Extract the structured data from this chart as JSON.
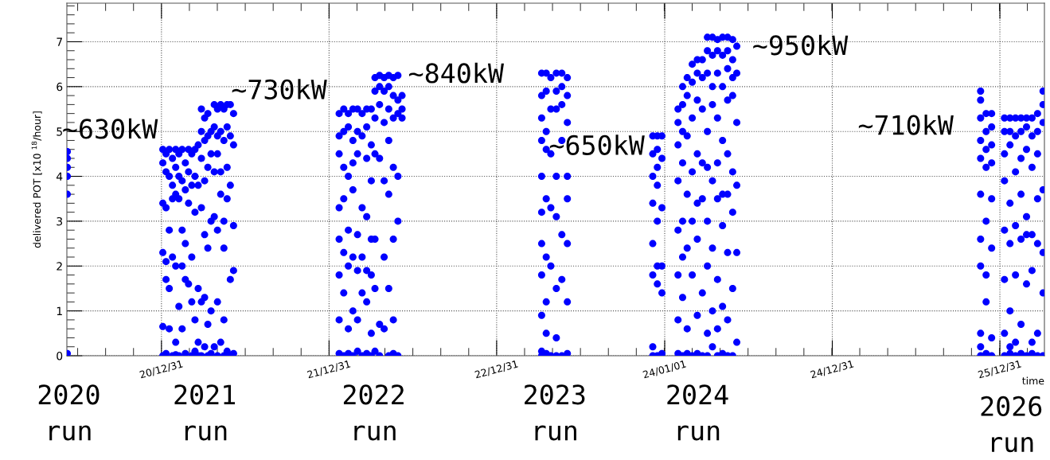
{
  "chart_data": {
    "type": "scatter",
    "ylabel": "delivered POT [x10 $^{18}$/hour]",
    "xlabel": "time",
    "xlim": [
      "2020-06-08",
      "2026-04-07"
    ],
    "ylim": [
      0,
      7.86
    ],
    "xticks": [
      {
        "value": "2020-12-31",
        "label": "20/12/31"
      },
      {
        "value": "2021-12-31",
        "label": "21/12/31"
      },
      {
        "value": "2022-12-31",
        "label": "22/12/31"
      },
      {
        "value": "2024-01-01",
        "label": "24/01/01"
      },
      {
        "value": "2024-12-31",
        "label": "24/12/31"
      },
      {
        "value": "2025-12-31",
        "label": "25/12/31"
      }
    ],
    "yticks": [
      0,
      1,
      2,
      3,
      4,
      5,
      6,
      7
    ],
    "grid": true,
    "marker": "circle",
    "series": [
      {
        "color": "#0000ff",
        "x": [
          "2020-06-09",
          "2020-06-09",
          "2020-06-09",
          "2020-06-09",
          "2020-06-09",
          "2020-06-09"
        ],
        "values": [
          4.55,
          4.4,
          4.2,
          4.0,
          3.6,
          0.05
        ]
      },
      {
        "color": "#0000ff",
        "x": [
          "2021-01-03",
          "2021-01-03",
          "2021-01-03",
          "2021-01-03",
          "2021-01-03",
          "2021-01-03",
          "2021-01-10",
          "2021-01-10",
          "2021-01-10",
          "2021-01-10",
          "2021-01-10",
          "2021-01-10",
          "2021-01-17",
          "2021-01-17",
          "2021-01-17",
          "2021-01-17",
          "2021-01-17",
          "2021-01-24",
          "2021-01-24",
          "2021-01-24",
          "2021-01-24",
          "2021-01-24",
          "2021-01-31",
          "2021-01-31",
          "2021-01-31",
          "2021-01-31",
          "2021-01-31",
          "2021-01-31",
          "2021-02-07",
          "2021-02-07",
          "2021-02-07",
          "2021-02-07",
          "2021-02-07",
          "2021-02-14",
          "2021-02-14",
          "2021-02-14",
          "2021-02-14",
          "2021-02-14",
          "2021-02-21",
          "2021-02-21",
          "2021-02-21",
          "2021-02-21",
          "2021-02-21",
          "2021-02-28",
          "2021-02-28",
          "2021-02-28",
          "2021-02-28",
          "2021-03-07",
          "2021-03-07",
          "2021-03-07",
          "2021-03-07",
          "2021-03-07",
          "2021-03-14",
          "2021-03-14",
          "2021-03-14",
          "2021-03-14",
          "2021-03-14",
          "2021-03-21",
          "2021-03-21",
          "2021-03-21",
          "2021-03-21",
          "2021-03-21",
          "2021-03-28",
          "2021-03-28",
          "2021-03-28",
          "2021-03-28",
          "2021-03-28",
          "2021-03-28",
          "2021-04-04",
          "2021-04-04",
          "2021-04-04",
          "2021-04-04",
          "2021-04-04",
          "2021-04-04",
          "2021-04-11",
          "2021-04-11",
          "2021-04-11",
          "2021-04-11",
          "2021-04-11",
          "2021-04-11",
          "2021-04-18",
          "2021-04-18",
          "2021-04-18",
          "2021-04-18",
          "2021-04-18",
          "2021-04-25",
          "2021-04-25",
          "2021-04-25",
          "2021-04-25",
          "2021-04-25",
          "2021-05-02",
          "2021-05-02",
          "2021-05-02",
          "2021-05-02",
          "2021-05-02",
          "2021-05-02",
          "2021-05-09",
          "2021-05-09",
          "2021-05-09",
          "2021-05-09",
          "2021-05-09",
          "2021-05-16",
          "2021-05-16",
          "2021-05-16",
          "2021-05-16",
          "2021-05-16",
          "2021-05-16",
          "2021-05-23",
          "2021-05-23",
          "2021-05-23",
          "2021-05-23",
          "2021-05-23",
          "2021-05-30",
          "2021-05-30",
          "2021-05-30",
          "2021-05-30",
          "2021-05-30",
          "2021-06-06",
          "2021-06-06",
          "2021-06-06",
          "2021-06-06",
          "2021-06-06"
        ],
        "values": [
          4.6,
          4.3,
          3.4,
          2.3,
          0.65,
          0.0,
          4.5,
          4.1,
          3.3,
          2.1,
          1.7,
          0.05,
          4.6,
          4.0,
          2.8,
          1.5,
          0.6,
          4.4,
          3.8,
          3.5,
          2.2,
          0.0,
          4.6,
          4.2,
          3.6,
          2.0,
          0.3,
          0.02,
          4.5,
          4.0,
          3.5,
          1.1,
          0.0,
          4.6,
          3.9,
          2.8,
          2.0,
          0.6,
          4.3,
          3.7,
          2.5,
          1.7,
          0.05,
          4.6,
          4.1,
          3.4,
          1.6,
          4.5,
          3.8,
          2.2,
          1.2,
          0.0,
          4.6,
          4.0,
          3.2,
          0.8,
          0.1,
          4.7,
          3.8,
          1.5,
          0.3,
          0.0,
          5.5,
          5.0,
          4.4,
          3.3,
          1.2,
          0.0,
          5.3,
          4.8,
          3.9,
          2.7,
          1.3,
          0.2,
          5.4,
          4.9,
          4.2,
          2.4,
          0.7,
          0.0,
          5.0,
          4.5,
          3.0,
          1.0,
          0.05,
          5.6,
          5.1,
          4.1,
          3.1,
          0.2,
          5.5,
          4.9,
          4.5,
          2.8,
          1.2,
          0.0,
          5.6,
          5.0,
          4.1,
          3.6,
          0.3,
          5.5,
          4.8,
          3.0,
          2.4,
          0.8,
          0.0,
          5.6,
          5.1,
          4.2,
          3.5,
          0.1,
          5.6,
          4.9,
          3.8,
          1.7,
          0.0,
          5.4,
          4.7,
          2.9,
          1.9,
          0.05
        ]
      },
      {
        "color": "#0000ff",
        "x": [
          "2022-01-22",
          "2022-01-22",
          "2022-01-22",
          "2022-01-22",
          "2022-01-22",
          "2022-01-22",
          "2022-01-22",
          "2022-01-22",
          "2022-02-01",
          "2022-02-01",
          "2022-02-01",
          "2022-02-01",
          "2022-02-01",
          "2022-02-01",
          "2022-02-01",
          "2022-02-11",
          "2022-02-11",
          "2022-02-11",
          "2022-02-11",
          "2022-02-11",
          "2022-02-11",
          "2022-02-11",
          "2022-02-21",
          "2022-02-21",
          "2022-02-21",
          "2022-02-21",
          "2022-02-21",
          "2022-02-21",
          "2022-02-21",
          "2022-03-03",
          "2022-03-03",
          "2022-03-03",
          "2022-03-03",
          "2022-03-03",
          "2022-03-03",
          "2022-03-03",
          "2022-03-13",
          "2022-03-13",
          "2022-03-13",
          "2022-03-13",
          "2022-03-13",
          "2022-03-13",
          "2022-03-23",
          "2022-03-23",
          "2022-03-23",
          "2022-03-23",
          "2022-03-23",
          "2022-03-23",
          "2022-03-23",
          "2022-04-02",
          "2022-04-02",
          "2022-04-02",
          "2022-04-02",
          "2022-04-02",
          "2022-04-02",
          "2022-04-02",
          "2022-04-10",
          "2022-04-10",
          "2022-04-10",
          "2022-04-10",
          "2022-04-10",
          "2022-04-10",
          "2022-04-10",
          "2022-04-20",
          "2022-04-20",
          "2022-04-20",
          "2022-04-20",
          "2022-04-20",
          "2022-04-20",
          "2022-04-30",
          "2022-04-30",
          "2022-04-30",
          "2022-04-30",
          "2022-04-30",
          "2022-04-30",
          "2022-05-10",
          "2022-05-10",
          "2022-05-10",
          "2022-05-10",
          "2022-05-10",
          "2022-05-10",
          "2022-05-10",
          "2022-05-20",
          "2022-05-20",
          "2022-05-20",
          "2022-05-20",
          "2022-05-20",
          "2022-05-20",
          "2022-05-20",
          "2022-05-30",
          "2022-05-30",
          "2022-05-30",
          "2022-05-30",
          "2022-05-30",
          "2022-05-30",
          "2022-06-08",
          "2022-06-08",
          "2022-06-08"
        ],
        "values": [
          5.4,
          4.9,
          4.5,
          3.3,
          2.6,
          1.8,
          0.8,
          0.05,
          5.5,
          5.0,
          4.2,
          3.5,
          2.3,
          1.4,
          0.0,
          5.4,
          5.1,
          4.0,
          2.8,
          2.0,
          0.6,
          0.05,
          5.5,
          4.8,
          4.3,
          3.7,
          2.2,
          1.0,
          0.0,
          5.5,
          5.0,
          4.5,
          2.7,
          1.9,
          0.8,
          0.1,
          5.4,
          4.9,
          3.3,
          2.2,
          1.4,
          0.0,
          5.5,
          5.1,
          4.4,
          3.1,
          1.9,
          1.2,
          0.05,
          5.5,
          4.7,
          3.9,
          2.6,
          1.8,
          0.5,
          0.0,
          6.2,
          5.9,
          5.3,
          4.5,
          2.6,
          1.5,
          0.1,
          6.25,
          6.0,
          5.6,
          4.4,
          0.7,
          0.0,
          6.2,
          5.9,
          5.2,
          3.9,
          2.2,
          0.6,
          6.25,
          6.0,
          5.5,
          4.8,
          3.6,
          1.5,
          0.0,
          6.2,
          5.8,
          5.3,
          4.2,
          2.6,
          0.8,
          0.05,
          6.25,
          5.7,
          5.4,
          4.0,
          3.0,
          0.0,
          5.8,
          5.5,
          5.3
        ]
      },
      {
        "color": "#0000ff",
        "x": [
          "2023-04-08",
          "2023-04-08",
          "2023-04-08",
          "2023-04-08",
          "2023-04-08",
          "2023-04-08",
          "2023-04-08",
          "2023-04-08",
          "2023-04-08",
          "2023-04-08",
          "2023-04-08",
          "2023-04-18",
          "2023-04-18",
          "2023-04-18",
          "2023-04-18",
          "2023-04-18",
          "2023-04-18",
          "2023-04-18",
          "2023-04-18",
          "2023-04-18",
          "2023-04-28",
          "2023-04-28",
          "2023-04-28",
          "2023-04-28",
          "2023-04-28",
          "2023-04-28",
          "2023-05-10",
          "2023-05-10",
          "2023-05-10",
          "2023-05-10",
          "2023-05-10",
          "2023-05-10",
          "2023-05-10",
          "2023-05-10",
          "2023-05-22",
          "2023-05-22",
          "2023-05-22",
          "2023-05-22",
          "2023-05-22",
          "2023-05-22",
          "2023-05-22",
          "2023-06-03",
          "2023-06-03",
          "2023-06-03",
          "2023-06-03",
          "2023-06-03",
          "2023-06-03",
          "2023-06-03",
          "2023-06-03"
        ],
        "values": [
          6.3,
          5.8,
          5.3,
          4.8,
          4.0,
          3.2,
          2.5,
          1.8,
          0.9,
          0.1,
          0.0,
          6.3,
          5.9,
          5.0,
          4.6,
          3.5,
          2.2,
          1.2,
          0.5,
          0.05,
          6.2,
          5.5,
          4.5,
          3.3,
          2.0,
          0.0,
          6.3,
          5.9,
          5.5,
          4.0,
          3.1,
          1.5,
          0.4,
          0.0,
          6.3,
          6.0,
          5.6,
          4.8,
          2.7,
          1.7,
          0.0,
          6.2,
          5.8,
          5.2,
          4.0,
          3.5,
          2.5,
          1.2,
          0.05
        ]
      },
      {
        "color": "#0000ff",
        "x": [
          "2023-12-06",
          "2023-12-06",
          "2023-12-06",
          "2023-12-06",
          "2023-12-06",
          "2023-12-06",
          "2023-12-06",
          "2023-12-06",
          "2023-12-16",
          "2023-12-16",
          "2023-12-16",
          "2023-12-16",
          "2023-12-16",
          "2023-12-16",
          "2023-12-16",
          "2023-12-16",
          "2023-12-26",
          "2023-12-26",
          "2023-12-26",
          "2023-12-26",
          "2023-12-26",
          "2023-12-26"
        ],
        "values": [
          4.9,
          4.5,
          4.0,
          3.4,
          2.5,
          1.8,
          0.2,
          0.0,
          4.9,
          4.6,
          4.2,
          3.8,
          3.0,
          2.0,
          1.6,
          0.0,
          4.9,
          4.4,
          3.3,
          2.0,
          1.4,
          0.05
        ]
      },
      {
        "color": "#0000ff",
        "x": [
          "2024-01-30",
          "2024-01-30",
          "2024-01-30",
          "2024-01-30",
          "2024-01-30",
          "2024-01-30",
          "2024-01-30",
          "2024-01-30",
          "2024-02-09",
          "2024-02-09",
          "2024-02-09",
          "2024-02-09",
          "2024-02-09",
          "2024-02-09",
          "2024-02-09",
          "2024-02-09",
          "2024-02-19",
          "2024-02-19",
          "2024-02-19",
          "2024-02-19",
          "2024-02-19",
          "2024-02-19",
          "2024-02-19",
          "2024-03-01",
          "2024-03-01",
          "2024-03-01",
          "2024-03-01",
          "2024-03-01",
          "2024-03-01",
          "2024-03-01",
          "2024-03-12",
          "2024-03-12",
          "2024-03-12",
          "2024-03-12",
          "2024-03-12",
          "2024-03-12",
          "2024-03-12",
          "2024-03-12",
          "2024-03-23",
          "2024-03-23",
          "2024-03-23",
          "2024-03-23",
          "2024-03-23",
          "2024-03-23",
          "2024-03-23",
          "2024-04-03",
          "2024-04-03",
          "2024-04-03",
          "2024-04-03",
          "2024-04-03",
          "2024-04-03",
          "2024-04-03",
          "2024-04-03",
          "2024-04-03",
          "2024-04-14",
          "2024-04-14",
          "2024-04-14",
          "2024-04-14",
          "2024-04-14",
          "2024-04-14",
          "2024-04-14",
          "2024-04-14",
          "2024-04-25",
          "2024-04-25",
          "2024-04-25",
          "2024-04-25",
          "2024-04-25",
          "2024-04-25",
          "2024-04-25",
          "2024-04-25",
          "2024-04-25",
          "2024-05-06",
          "2024-05-06",
          "2024-05-06",
          "2024-05-06",
          "2024-05-06",
          "2024-05-06",
          "2024-05-06",
          "2024-05-06",
          "2024-05-17",
          "2024-05-17",
          "2024-05-17",
          "2024-05-17",
          "2024-05-17",
          "2024-05-17",
          "2024-05-17",
          "2024-05-17",
          "2024-05-17",
          "2024-05-28",
          "2024-05-28",
          "2024-05-28",
          "2024-05-28",
          "2024-05-28",
          "2024-05-28",
          "2024-05-28",
          "2024-05-28",
          "2024-06-06",
          "2024-06-06",
          "2024-06-06",
          "2024-06-06",
          "2024-06-06",
          "2024-06-06"
        ],
        "values": [
          5.5,
          5.2,
          4.7,
          3.9,
          2.8,
          1.8,
          0.8,
          0.05,
          6.0,
          5.6,
          5.0,
          4.3,
          3.0,
          2.2,
          1.3,
          0.0,
          6.2,
          5.8,
          4.9,
          3.6,
          2.4,
          0.6,
          0.05,
          6.5,
          6.1,
          5.3,
          4.1,
          3.0,
          1.8,
          0.0,
          6.6,
          6.3,
          5.7,
          4.5,
          3.4,
          2.6,
          0.9,
          0.05,
          6.6,
          6.2,
          5.5,
          4.3,
          3.5,
          1.4,
          0.0,
          7.1,
          6.8,
          6.3,
          5.0,
          4.2,
          3.0,
          2.0,
          0.5,
          0.0,
          7.1,
          6.7,
          6.0,
          5.6,
          3.9,
          2.4,
          1.0,
          0.2,
          7.05,
          6.8,
          6.3,
          5.3,
          4.3,
          3.5,
          1.7,
          0.6,
          0.0,
          7.1,
          6.7,
          6.0,
          4.8,
          3.6,
          2.9,
          1.1,
          0.05,
          7.1,
          6.8,
          6.4,
          5.7,
          4.5,
          3.6,
          2.3,
          0.8,
          0.0,
          7.05,
          6.6,
          6.2,
          5.8,
          4.1,
          3.2,
          1.5,
          0.0,
          6.9,
          6.3,
          5.2,
          3.8,
          2.3,
          0.3
        ]
      },
      {
        "color": "#0000ff",
        "x": [
          "2025-11-19",
          "2025-11-19",
          "2025-11-19",
          "2025-11-19",
          "2025-11-19",
          "2025-11-19",
          "2025-11-19",
          "2025-11-19",
          "2025-11-19",
          "2025-11-19",
          "2025-11-19",
          "2025-12-01",
          "2025-12-01",
          "2025-12-01",
          "2025-12-01",
          "2025-12-01",
          "2025-12-01",
          "2025-12-01",
          "2025-12-01",
          "2025-12-13",
          "2025-12-13",
          "2025-12-13",
          "2025-12-13",
          "2025-12-13",
          "2025-12-13",
          "2025-12-13",
          "2025-12-13"
        ],
        "values": [
          5.9,
          5.7,
          5.3,
          4.8,
          4.4,
          3.6,
          2.6,
          2.0,
          0.5,
          0.2,
          0.0,
          5.4,
          5.0,
          4.6,
          4.2,
          3.0,
          1.8,
          1.2,
          0.05,
          5.4,
          5.1,
          4.7,
          4.3,
          3.5,
          2.4,
          0.4,
          0.0
        ]
      },
      {
        "color": "#0000ff",
        "x": [
          "2026-01-10",
          "2026-01-10",
          "2026-01-10",
          "2026-01-10",
          "2026-01-10",
          "2026-01-10",
          "2026-01-10",
          "2026-01-10",
          "2026-01-22",
          "2026-01-22",
          "2026-01-22",
          "2026-01-22",
          "2026-01-22",
          "2026-01-22",
          "2026-01-22",
          "2026-01-22",
          "2026-02-03",
          "2026-02-03",
          "2026-02-03",
          "2026-02-03",
          "2026-02-03",
          "2026-02-03",
          "2026-02-03",
          "2026-02-15",
          "2026-02-15",
          "2026-02-15",
          "2026-02-15",
          "2026-02-15",
          "2026-02-15",
          "2026-02-15",
          "2026-02-27",
          "2026-02-27",
          "2026-02-27",
          "2026-02-27",
          "2026-02-27",
          "2026-02-27",
          "2026-02-27",
          "2026-03-11",
          "2026-03-11",
          "2026-03-11",
          "2026-03-11",
          "2026-03-11",
          "2026-03-11",
          "2026-03-11",
          "2026-03-23",
          "2026-03-23",
          "2026-03-23",
          "2026-03-23",
          "2026-03-23",
          "2026-03-23",
          "2026-03-23",
          "2026-04-04",
          "2026-04-04",
          "2026-04-04",
          "2026-04-04",
          "2026-04-04",
          "2026-04-04",
          "2026-04-04"
        ],
        "values": [
          5.3,
          5.0,
          4.5,
          3.9,
          2.8,
          1.7,
          0.5,
          0.0,
          5.3,
          5.0,
          4.7,
          3.4,
          2.5,
          1.0,
          0.2,
          0.05,
          5.3,
          4.9,
          4.1,
          2.9,
          1.8,
          0.3,
          0.0,
          5.3,
          5.0,
          4.4,
          3.6,
          2.6,
          0.7,
          0.05,
          5.3,
          5.1,
          4.6,
          3.1,
          2.7,
          1.6,
          0.0,
          5.3,
          4.9,
          4.2,
          2.7,
          1.9,
          0.3,
          0.05,
          5.4,
          5.0,
          4.5,
          3.5,
          2.5,
          0.5,
          0.0,
          5.9,
          5.6,
          5.2,
          3.7,
          2.3,
          1.4,
          0.0
        ]
      }
    ],
    "annotations": [
      "~630kW",
      "~730kW",
      "~840kW",
      "~650kW",
      "~950kW",
      "~710kW",
      "2020\nrun",
      "2021\nrun",
      "2022\nrun",
      "2023\nrun",
      "2024\nrun",
      "2026\nrun"
    ]
  }
}
